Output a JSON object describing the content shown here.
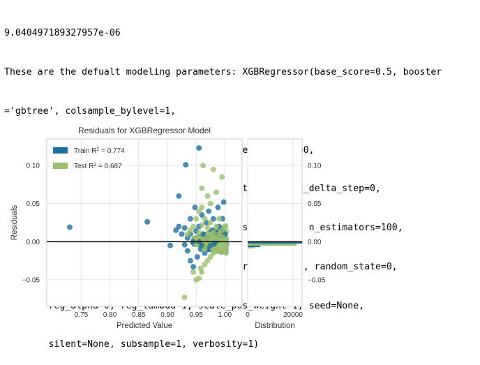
{
  "output_lines": [
    "9.040497189327957e-06",
    "These are the defualt modeling parameters: XGBRegressor(base_score=0.5, booster",
    "='gbtree', colsample_bylevel=1,",
    "        colsample_bynode=1, colsample_bytree=1, gamma=0,",
    "        importance_type='gain', learning_rate=0.1, max_delta_step=0,",
    "        max_depth=3, min_child_weight=1, missing=None, n_estimators=100,",
    "        n_jobs=1, nthread=None, objective='reg:linear', random_state=0,",
    "        reg_alpha=0, reg_lambda=1, scale_pos_weight=1, seed=None,",
    "        silent=None, subsample=1, verbosity=1)"
  ],
  "chart_data": {
    "type": "scatter",
    "title": "Residuals for XGBRegressor Model",
    "xlabel": "Predicted Value",
    "ylabel": "Residuals",
    "xlim": [
      0.69,
      1.03
    ],
    "ylim": [
      -0.085,
      0.135
    ],
    "xticks": [
      "0.75",
      "0.80",
      "0.85",
      "0.90",
      "0.95",
      "1.00"
    ],
    "xtick_values": [
      0.75,
      0.8,
      0.85,
      0.9,
      0.95,
      1.0
    ],
    "yticks": [
      "0.10",
      "0.05",
      "0.00",
      "−0.05"
    ],
    "ytick_values": [
      0.1,
      0.05,
      0.0,
      -0.05
    ],
    "grid": true,
    "legend_placement": "top-left",
    "zero_line": 0.0,
    "series": [
      {
        "name": "Train",
        "r2_label": "= 0.774",
        "color": "#1f6f9f",
        "points": [
          [
            0.73,
            0.019
          ],
          [
            0.865,
            0.026
          ],
          [
            0.92,
            0.06
          ],
          [
            0.932,
            0.101
          ],
          [
            0.955,
            0.123
          ],
          [
            0.905,
            -0.005
          ],
          [
            0.915,
            0.015
          ],
          [
            0.92,
            0.02
          ],
          [
            0.93,
            0.018
          ],
          [
            0.935,
            -0.012
          ],
          [
            0.94,
            0.03
          ],
          [
            0.94,
            -0.025
          ],
          [
            0.945,
            -0.033
          ],
          [
            0.948,
            0.045
          ],
          [
            0.95,
            0.014
          ],
          [
            0.952,
            -0.02
          ],
          [
            0.955,
            0.02
          ],
          [
            0.958,
            -0.01
          ],
          [
            0.96,
            0.035
          ],
          [
            0.962,
            0.01
          ],
          [
            0.965,
            -0.015
          ],
          [
            0.968,
            0.025
          ],
          [
            0.97,
            0.005
          ],
          [
            0.972,
            0.04
          ],
          [
            0.975,
            -0.005
          ],
          [
            0.978,
            0.015
          ],
          [
            0.98,
            0.03
          ],
          [
            0.982,
            -0.003
          ],
          [
            0.985,
            0.012
          ],
          [
            0.988,
            0.045
          ],
          [
            0.99,
            0.02
          ],
          [
            0.993,
            0.008
          ],
          [
            0.996,
            0.03
          ],
          [
            0.998,
            0.052
          ],
          [
            1.0,
            0.01
          ],
          [
            0.955,
            0.0
          ],
          [
            0.96,
            -0.005
          ],
          [
            0.97,
            -0.01
          ],
          [
            0.985,
            0.0
          ],
          [
            0.995,
            0.015
          ],
          [
            0.94,
            0.01
          ],
          [
            0.945,
            0.0
          ],
          [
            0.935,
            0.005
          ],
          [
            0.93,
            -0.004
          ],
          [
            0.925,
            0.01
          ]
        ]
      },
      {
        "name": "Test",
        "r2_label": "= 0.687",
        "color": "#9bbf72",
        "points": [
          [
            0.93,
            -0.073
          ],
          [
            0.95,
            -0.05
          ],
          [
            0.955,
            -0.048
          ],
          [
            0.96,
            -0.04
          ],
          [
            0.965,
            -0.03
          ],
          [
            0.97,
            -0.025
          ],
          [
            0.975,
            -0.02
          ],
          [
            0.98,
            -0.015
          ],
          [
            0.985,
            -0.01
          ],
          [
            0.99,
            -0.005
          ],
          [
            0.995,
            -0.002
          ],
          [
            1.0,
            0.0
          ],
          [
            0.962,
            0.1
          ],
          [
            0.98,
            0.095
          ],
          [
            0.995,
            0.085
          ],
          [
            0.97,
            0.06
          ],
          [
            0.96,
            0.045
          ],
          [
            0.955,
            0.04
          ],
          [
            0.95,
            0.03
          ],
          [
            0.945,
            0.02
          ],
          [
            0.94,
            0.015
          ],
          [
            0.935,
            0.01
          ],
          [
            0.95,
            0.005
          ],
          [
            0.955,
            0.012
          ],
          [
            0.96,
            0.022
          ],
          [
            0.965,
            0.03
          ],
          [
            0.97,
            0.018
          ],
          [
            0.975,
            0.025
          ],
          [
            0.98,
            0.012
          ],
          [
            0.985,
            0.02
          ],
          [
            0.99,
            0.03
          ],
          [
            0.995,
            0.015
          ],
          [
            1.0,
            0.02
          ],
          [
            0.965,
            -0.01
          ],
          [
            0.97,
            0.005
          ],
          [
            0.975,
            0.002
          ],
          [
            0.98,
            0.006
          ],
          [
            0.985,
            0.004
          ],
          [
            0.99,
            0.01
          ],
          [
            0.995,
            0.006
          ],
          [
            0.945,
            -0.04
          ],
          [
            0.958,
            -0.035
          ],
          [
            0.96,
            0.07
          ],
          [
            0.985,
            0.065
          ],
          [
            0.975,
            0.05
          ]
        ]
      }
    ],
    "distribution": {
      "xlabel": "Distribution",
      "xticks": [
        "0",
        "20000"
      ],
      "xtick_values": [
        0,
        20000
      ],
      "xlim": [
        0,
        24000
      ],
      "yticks": [
        "0.10",
        "0.05",
        "0.00",
        "−0.05"
      ]
    }
  }
}
